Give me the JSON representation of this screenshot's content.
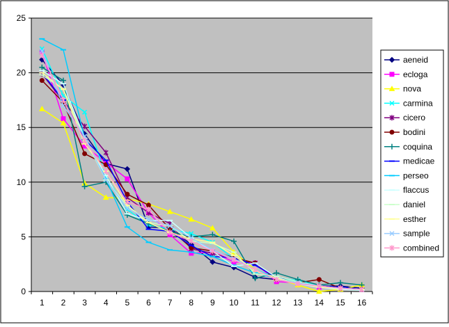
{
  "chart_data": {
    "type": "line",
    "title": "",
    "xlabel": "",
    "ylabel": "",
    "x": [
      1,
      2,
      3,
      4,
      5,
      6,
      7,
      8,
      9,
      10,
      11,
      12,
      13,
      14,
      15,
      16
    ],
    "xticks": [
      "1",
      "2",
      "3",
      "4",
      "5",
      "6",
      "7",
      "8",
      "9",
      "10",
      "11",
      "12",
      "13",
      "14",
      "15",
      "16"
    ],
    "ylim": [
      0,
      25
    ],
    "yticks": [
      "0",
      "5",
      "10",
      "15",
      "20",
      "25"
    ],
    "grid": "horizontal",
    "plot_background": "#c0c0c0",
    "legend_position": "right",
    "series": [
      {
        "name": "aeneid",
        "color": "#000080",
        "marker": "diamond",
        "values": [
          21.2,
          18.9,
          14.4,
          11.7,
          11.2,
          5.9,
          5.8,
          4.3,
          2.7,
          2.2,
          1.3,
          1.1,
          0.8,
          0.5,
          0.5,
          0.3
        ]
      },
      {
        "name": "ecloga",
        "color": "#ff00ff",
        "marker": "square",
        "values": [
          21.9,
          15.8,
          13.3,
          11.8,
          10.3,
          7.2,
          5.2,
          3.5,
          3.6,
          2.7,
          2.6,
          0.9,
          0.8,
          0.4,
          0.3,
          0.2
        ]
      },
      {
        "name": "nova",
        "color": "#ffff00",
        "marker": "triangle",
        "values": [
          16.7,
          15.4,
          9.9,
          8.6,
          8.5,
          8.0,
          7.3,
          6.6,
          5.8,
          3.6,
          2.0,
          1.2,
          0.6,
          0.0,
          0.2,
          0.6
        ]
      },
      {
        "name": "carmina",
        "color": "#00ffff",
        "marker": "x",
        "values": [
          22.2,
          17.9,
          16.4,
          10.5,
          7.5,
          6.1,
          5.7,
          5.3,
          4.5,
          3.0,
          2.0,
          1.3,
          1.0,
          0.5,
          0.3,
          0.2
        ]
      },
      {
        "name": "cicero",
        "color": "#800080",
        "marker": "star",
        "values": [
          19.9,
          17.4,
          15.1,
          12.7,
          8.6,
          7.2,
          6.2,
          3.9,
          3.5,
          3.0,
          2.6,
          1.1,
          0.8,
          0.5,
          0.3,
          0.2
        ]
      },
      {
        "name": "bodini",
        "color": "#800000",
        "marker": "circle",
        "values": [
          19.3,
          17.3,
          12.6,
          11.6,
          8.9,
          7.9,
          5.7,
          4.0,
          3.7,
          3.1,
          2.6,
          1.1,
          0.8,
          1.1,
          0.3,
          0.2
        ]
      },
      {
        "name": "coquina",
        "color": "#008080",
        "marker": "plus",
        "values": [
          20.5,
          19.3,
          9.6,
          10.0,
          7.0,
          6.2,
          5.5,
          5.0,
          5.2,
          4.6,
          1.2,
          1.7,
          1.1,
          0.6,
          0.8,
          0.6
        ]
      },
      {
        "name": "medicae",
        "color": "#0000ff",
        "marker": "dash",
        "values": [
          20.0,
          17.5,
          13.9,
          12.0,
          8.2,
          5.7,
          5.5,
          4.2,
          3.2,
          3.1,
          2.4,
          1.3,
          0.9,
          0.5,
          0.4,
          0.2
        ]
      },
      {
        "name": "perseo",
        "color": "#00ccff",
        "marker": "dash",
        "values": [
          23.1,
          22.1,
          14.0,
          10.3,
          5.9,
          4.5,
          3.8,
          3.6,
          3.2,
          2.4,
          1.7,
          1.2,
          0.9,
          0.5,
          0.3,
          0.2
        ]
      },
      {
        "name": "flaccus",
        "color": "#ccffff",
        "marker": "dash",
        "values": [
          20.2,
          19.0,
          14.0,
          10.6,
          7.1,
          6.5,
          6.5,
          4.9,
          3.7,
          2.3,
          2.6,
          1.3,
          0.7,
          0.4,
          0.2,
          0.1
        ]
      },
      {
        "name": "daniel",
        "color": "#ccffcc",
        "marker": "dash",
        "values": [
          19.8,
          18.5,
          14.0,
          10.2,
          7.8,
          6.3,
          6.0,
          4.6,
          4.4,
          3.6,
          1.6,
          1.4,
          0.9,
          0.5,
          0.3,
          0.2
        ]
      },
      {
        "name": "esther",
        "color": "#ffff99",
        "marker": "dash",
        "values": [
          20.0,
          18.5,
          13.5,
          11.0,
          7.9,
          6.3,
          5.4,
          4.8,
          4.5,
          3.3,
          1.9,
          1.2,
          0.8,
          0.4,
          0.3,
          0.2
        ]
      },
      {
        "name": "sample",
        "color": "#99ccff",
        "marker": "x",
        "values": [
          22.0,
          17.0,
          14.2,
          10.2,
          7.6,
          6.6,
          6.0,
          4.9,
          3.8,
          3.0,
          2.0,
          1.1,
          0.8,
          0.5,
          0.3,
          0.2
        ]
      },
      {
        "name": "combined",
        "color": "#ff99cc",
        "marker": "star",
        "values": [
          21.6,
          17.5,
          13.8,
          11.0,
          8.2,
          7.5,
          5.4,
          4.6,
          3.7,
          2.9,
          2.0,
          1.1,
          0.7,
          0.5,
          0.3,
          0.2
        ]
      }
    ]
  }
}
